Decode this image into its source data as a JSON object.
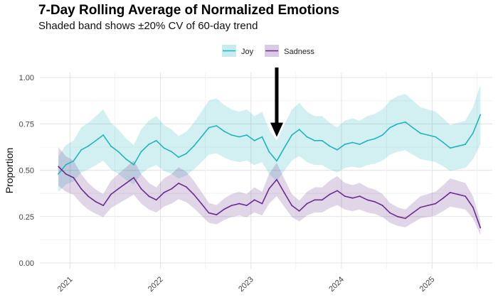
{
  "chart_data": {
    "type": "line",
    "title": "7-Day Rolling Average of Normalized Emotions",
    "subtitle": "Shaded band shows ±20% CV of 60-day trend",
    "xlabel": "",
    "ylabel": "Proportion",
    "x_ticks": [
      "2021",
      "2022",
      "2023",
      "2024",
      "2025"
    ],
    "y_ticks": [
      "0.00",
      "0.25",
      "0.50",
      "0.75",
      "1.00"
    ],
    "xlim": [
      "2020-09-01",
      "2025-09-01"
    ],
    "ylim": [
      0,
      1
    ],
    "legend_position": "top-center",
    "grid": true,
    "colors": {
      "Joy": "#1fb5bd",
      "Sadness": "#6a2c8e"
    },
    "band_fraction": 0.2,
    "annotation": {
      "type": "arrow",
      "x": "2023-04-15",
      "y_tip": 0.68
    },
    "series": [
      {
        "name": "Joy",
        "dates": [
          "2020-11-15",
          "2020-12-15",
          "2021-01-15",
          "2021-02-15",
          "2021-03-15",
          "2021-04-15",
          "2021-05-15",
          "2021-06-15",
          "2021-07-15",
          "2021-08-15",
          "2021-09-15",
          "2021-10-15",
          "2021-11-15",
          "2021-12-15",
          "2022-01-15",
          "2022-02-15",
          "2022-03-15",
          "2022-04-15",
          "2022-05-15",
          "2022-06-15",
          "2022-07-15",
          "2022-08-15",
          "2022-09-15",
          "2022-10-15",
          "2022-11-15",
          "2022-12-15",
          "2023-01-15",
          "2023-02-15",
          "2023-03-15",
          "2023-04-15",
          "2023-05-15",
          "2023-06-15",
          "2023-07-15",
          "2023-08-15",
          "2023-09-15",
          "2023-10-15",
          "2023-11-15",
          "2023-12-15",
          "2024-01-15",
          "2024-02-15",
          "2024-03-15",
          "2024-04-15",
          "2024-05-15",
          "2024-06-15",
          "2024-07-15",
          "2024-08-15",
          "2024-09-15",
          "2024-10-15",
          "2024-11-15",
          "2024-12-15",
          "2025-01-15",
          "2025-02-15",
          "2025-03-15",
          "2025-04-15",
          "2025-05-15",
          "2025-06-15",
          "2025-07-15"
        ],
        "values": [
          0.48,
          0.53,
          0.55,
          0.61,
          0.63,
          0.66,
          0.69,
          0.63,
          0.6,
          0.56,
          0.53,
          0.6,
          0.64,
          0.66,
          0.62,
          0.6,
          0.57,
          0.59,
          0.63,
          0.68,
          0.73,
          0.74,
          0.71,
          0.69,
          0.68,
          0.69,
          0.66,
          0.68,
          0.6,
          0.55,
          0.62,
          0.69,
          0.72,
          0.68,
          0.66,
          0.66,
          0.63,
          0.61,
          0.64,
          0.65,
          0.64,
          0.66,
          0.67,
          0.69,
          0.73,
          0.75,
          0.76,
          0.73,
          0.7,
          0.69,
          0.68,
          0.65,
          0.62,
          0.63,
          0.64,
          0.7,
          0.8
        ]
      },
      {
        "name": "Sadness",
        "dates": [
          "2020-11-15",
          "2020-12-15",
          "2021-01-15",
          "2021-02-15",
          "2021-03-15",
          "2021-04-15",
          "2021-05-15",
          "2021-06-15",
          "2021-07-15",
          "2021-08-15",
          "2021-09-15",
          "2021-10-15",
          "2021-11-15",
          "2021-12-15",
          "2022-01-15",
          "2022-02-15",
          "2022-03-15",
          "2022-04-15",
          "2022-05-15",
          "2022-06-15",
          "2022-07-15",
          "2022-08-15",
          "2022-09-15",
          "2022-10-15",
          "2022-11-15",
          "2022-12-15",
          "2023-01-15",
          "2023-02-15",
          "2023-03-15",
          "2023-04-15",
          "2023-05-15",
          "2023-06-15",
          "2023-07-15",
          "2023-08-15",
          "2023-09-15",
          "2023-10-15",
          "2023-11-15",
          "2023-12-15",
          "2024-01-15",
          "2024-02-15",
          "2024-03-15",
          "2024-04-15",
          "2024-05-15",
          "2024-06-15",
          "2024-07-15",
          "2024-08-15",
          "2024-09-15",
          "2024-10-15",
          "2024-11-15",
          "2024-12-15",
          "2025-01-15",
          "2025-02-15",
          "2025-03-15",
          "2025-04-15",
          "2025-05-15",
          "2025-06-15",
          "2025-07-15"
        ],
        "values": [
          0.52,
          0.48,
          0.46,
          0.4,
          0.36,
          0.33,
          0.31,
          0.37,
          0.4,
          0.43,
          0.46,
          0.4,
          0.36,
          0.34,
          0.38,
          0.4,
          0.43,
          0.41,
          0.37,
          0.32,
          0.27,
          0.26,
          0.29,
          0.31,
          0.32,
          0.31,
          0.34,
          0.32,
          0.4,
          0.45,
          0.38,
          0.31,
          0.28,
          0.32,
          0.34,
          0.34,
          0.37,
          0.39,
          0.36,
          0.35,
          0.36,
          0.34,
          0.33,
          0.31,
          0.27,
          0.25,
          0.24,
          0.27,
          0.3,
          0.31,
          0.32,
          0.35,
          0.38,
          0.37,
          0.36,
          0.3,
          0.19
        ]
      }
    ]
  }
}
